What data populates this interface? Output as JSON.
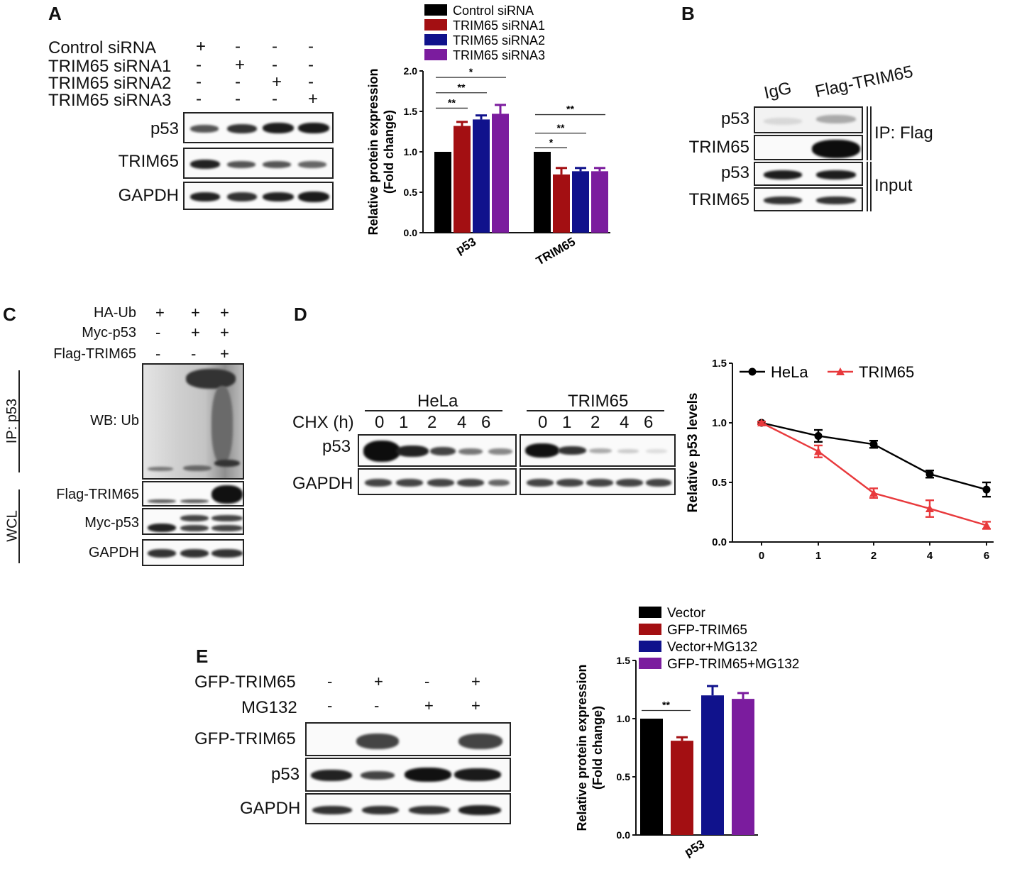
{
  "panels": {
    "A": {
      "label": "A",
      "conditions": [
        {
          "name": "Control siRNA",
          "signs": [
            "+",
            "-",
            "-",
            "-"
          ]
        },
        {
          "name": "TRIM65 siRNA1",
          "signs": [
            "-",
            "+",
            "-",
            "-"
          ]
        },
        {
          "name": "TRIM65 siRNA2",
          "signs": [
            "-",
            "-",
            "+",
            "-"
          ]
        },
        {
          "name": "TRIM65 siRNA3",
          "signs": [
            "-",
            "-",
            "-",
            "+"
          ]
        }
      ],
      "blots": [
        "p53",
        "TRIM65",
        "GAPDH"
      ]
    },
    "B": {
      "label": "B",
      "lanes": [
        "IgG",
        "Flag-TRIM65"
      ],
      "blots": [
        "p53",
        "TRIM65",
        "p53",
        "TRIM65"
      ],
      "groups": [
        "IP: Flag",
        "Input"
      ]
    },
    "C": {
      "label": "C",
      "conditions": [
        {
          "name": "HA-Ub",
          "signs": [
            "+",
            "+",
            "+"
          ]
        },
        {
          "name": "Myc-p53",
          "signs": [
            "-",
            "+",
            "+"
          ]
        },
        {
          "name": "Flag-TRIM65",
          "signs": [
            "-",
            "-",
            "+"
          ]
        }
      ],
      "side_labels": [
        "IP: p53",
        "WCL"
      ],
      "blots": [
        "WB: Ub",
        "Flag-TRIM65",
        "Myc-p53",
        "GAPDH"
      ]
    },
    "D": {
      "label": "D",
      "groups": [
        "HeLa",
        "TRIM65"
      ],
      "time_label": "CHX (h)",
      "times": [
        "0",
        "1",
        "2",
        "4",
        "6"
      ],
      "blots": [
        "p53",
        "GAPDH"
      ]
    },
    "E": {
      "label": "E",
      "conditions": [
        {
          "name": "GFP-TRIM65",
          "signs": [
            "-",
            "+",
            "-",
            "+"
          ]
        },
        {
          "name": "MG132",
          "signs": [
            "-",
            "-",
            "+",
            "+"
          ]
        }
      ],
      "blots": [
        "GFP-TRIM65",
        "p53",
        "GAPDH"
      ]
    }
  },
  "chart_data": [
    {
      "type": "bar",
      "panel": "A",
      "categories": [
        "p53",
        "TRIM65"
      ],
      "series": [
        {
          "name": "Control siRNA",
          "color": "#000000",
          "values": [
            1.0,
            1.0
          ],
          "errors": [
            0,
            0
          ]
        },
        {
          "name": "TRIM65 siRNA1",
          "color": "#a30f12",
          "values": [
            1.32,
            0.72
          ],
          "errors": [
            0.05,
            0.08
          ]
        },
        {
          "name": "TRIM65 siRNA2",
          "color": "#10128c",
          "values": [
            1.4,
            0.76
          ],
          "errors": [
            0.05,
            0.04
          ]
        },
        {
          "name": "TRIM65 siRNA3",
          "color": "#7b1c9e",
          "values": [
            1.47,
            0.76
          ],
          "errors": [
            0.11,
            0.04
          ]
        }
      ],
      "ylabel": "Relative protein expression\n(Fold change)",
      "ylim": [
        0,
        2.0
      ],
      "yticks": [
        "0.0",
        "0.5",
        "1.0",
        "1.5",
        "2.0"
      ],
      "significance": [
        {
          "label": "**",
          "category": 0,
          "from": 0,
          "to": 1,
          "y": 1.54
        },
        {
          "label": "**",
          "category": 0,
          "from": 0,
          "to": 2,
          "y": 1.73
        },
        {
          "label": "*",
          "category": 0,
          "from": 0,
          "to": 3,
          "y": 1.92
        },
        {
          "label": "*",
          "category": 1,
          "from": 0,
          "to": 1,
          "y": 1.05
        },
        {
          "label": "**",
          "category": 1,
          "from": 0,
          "to": 2,
          "y": 1.23
        },
        {
          "label": "**",
          "category": 1,
          "from": 0,
          "to": 3,
          "y": 1.46
        }
      ],
      "legend": "top"
    },
    {
      "type": "line",
      "panel": "D",
      "x": [
        "0",
        "1",
        "2",
        "4",
        "6"
      ],
      "series": [
        {
          "name": "HeLa",
          "color": "#000000",
          "marker": "circle",
          "values": [
            1.0,
            0.89,
            0.82,
            0.57,
            0.44
          ],
          "errors": [
            0.01,
            0.05,
            0.03,
            0.03,
            0.06
          ]
        },
        {
          "name": "TRIM65",
          "color": "#e8393c",
          "marker": "triangle",
          "values": [
            1.0,
            0.76,
            0.41,
            0.28,
            0.14
          ],
          "errors": [
            0.01,
            0.05,
            0.04,
            0.07,
            0.03
          ]
        }
      ],
      "ylabel": "Relative p53 levels",
      "ylim": [
        0,
        1.5
      ],
      "yticks": [
        "0.0",
        "0.5",
        "1.0",
        "1.5"
      ],
      "legend": "top"
    },
    {
      "type": "bar",
      "panel": "E",
      "categories": [
        "p53"
      ],
      "series": [
        {
          "name": "Vector",
          "color": "#000000",
          "values": [
            1.0
          ],
          "errors": [
            0
          ]
        },
        {
          "name": "GFP-TRIM65",
          "color": "#a30f12",
          "values": [
            0.81
          ],
          "errors": [
            0.03
          ]
        },
        {
          "name": "Vector+MG132",
          "color": "#10128c",
          "values": [
            1.2
          ],
          "errors": [
            0.08
          ]
        },
        {
          "name": "GFP-TRIM65+MG132",
          "color": "#7b1c9e",
          "values": [
            1.17
          ],
          "errors": [
            0.05
          ]
        }
      ],
      "ylabel": "Relative protein expression\n(Fold change)",
      "ylim": [
        0,
        1.5
      ],
      "yticks": [
        "0.0",
        "0.5",
        "1.0",
        "1.5"
      ],
      "significance": [
        {
          "label": "**",
          "category": 0,
          "from": 0,
          "to": 1,
          "y": 1.07
        }
      ],
      "legend": "top"
    }
  ]
}
